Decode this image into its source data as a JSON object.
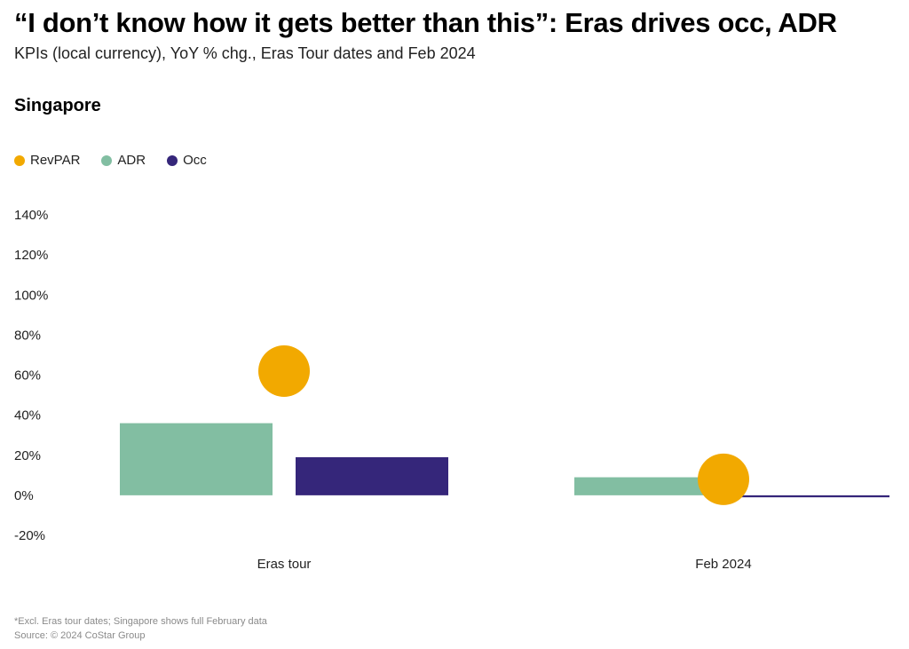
{
  "title": "“I don’t know how it gets better than this”: Eras drives occ, ADR",
  "subtitle": "KPIs (local currency), YoY % chg., Eras Tour dates and Feb 2024",
  "panel_title": "Singapore",
  "legend": [
    {
      "name": "RevPAR",
      "color": "#F2A900"
    },
    {
      "name": "ADR",
      "color": "#82BEA2"
    },
    {
      "name": "Occ",
      "color": "#35267A"
    }
  ],
  "footnote": "*Excl. Eras tour dates; Singapore shows full February data",
  "source": "Source: © 2024 CoStar Group",
  "chart_data": {
    "type": "bar",
    "categories": [
      "Eras tour",
      "Feb 2024"
    ],
    "series": [
      {
        "name": "ADR",
        "type": "bar",
        "values": [
          36,
          9
        ],
        "color": "#82BEA2"
      },
      {
        "name": "Occ",
        "type": "bar",
        "values": [
          19,
          -1
        ],
        "color": "#35267A"
      },
      {
        "name": "RevPAR",
        "type": "dot",
        "values": [
          62,
          8
        ],
        "color": "#F2A900"
      }
    ],
    "ylim": [
      -20,
      140
    ],
    "yticks": [
      -20,
      0,
      20,
      40,
      60,
      80,
      100,
      120,
      140
    ],
    "ytick_labels": [
      "-20%",
      "0%",
      "20%",
      "40%",
      "60%",
      "80%",
      "100%",
      "120%",
      "140%"
    ],
    "xlabel": "",
    "ylabel": "",
    "grid": false,
    "legend_position": "top-left"
  }
}
